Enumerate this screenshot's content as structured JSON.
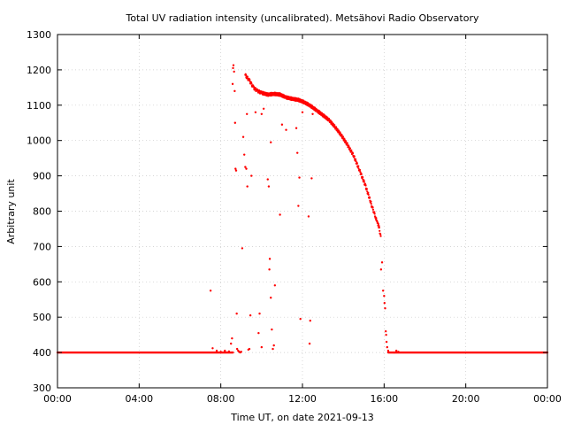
{
  "chart_data": {
    "type": "scatter",
    "title": "Total UV radiation intensity (uncalibrated). Metsähovi Radio Observatory",
    "xlabel": "Time UT, on date 2021-09-13",
    "ylabel": "Arbitrary unit",
    "x_unit": "hours UT",
    "xlim": [
      0,
      24
    ],
    "ylim": [
      300,
      1300
    ],
    "x_ticks": [
      {
        "value": 0,
        "label": "00:00"
      },
      {
        "value": 4,
        "label": "04:00"
      },
      {
        "value": 8,
        "label": "08:00"
      },
      {
        "value": 12,
        "label": "12:00"
      },
      {
        "value": 16,
        "label": "16:00"
      },
      {
        "value": 20,
        "label": "20:00"
      },
      {
        "value": 24,
        "label": "00:00"
      }
    ],
    "y_ticks": [
      300,
      400,
      500,
      600,
      700,
      800,
      900,
      1000,
      1100,
      1200,
      1300
    ],
    "grid": true,
    "series": [
      {
        "color": "#ff0000",
        "baseline": {
          "value": 400,
          "ranges": [
            [
              0,
              8.6
            ],
            [
              16.2,
              24
            ]
          ]
        },
        "points": [
          [
            7.5,
            575
          ],
          [
            7.6,
            412
          ],
          [
            7.8,
            405
          ],
          [
            8.0,
            402
          ],
          [
            8.2,
            405
          ],
          [
            8.4,
            403
          ],
          [
            8.5,
            425
          ],
          [
            8.55,
            440
          ],
          [
            8.58,
            1160
          ],
          [
            8.6,
            1205
          ],
          [
            8.62,
            1213
          ],
          [
            8.65,
            1195
          ],
          [
            8.68,
            1140
          ],
          [
            8.7,
            1050
          ],
          [
            8.72,
            920
          ],
          [
            8.75,
            915
          ],
          [
            8.78,
            510
          ],
          [
            8.8,
            410
          ],
          [
            8.85,
            405
          ],
          [
            8.9,
            402
          ],
          [
            8.95,
            400
          ],
          [
            9.0,
            402
          ],
          [
            9.05,
            695
          ],
          [
            9.1,
            1010
          ],
          [
            9.15,
            960
          ],
          [
            9.2,
            925
          ],
          [
            9.25,
            920
          ],
          [
            9.3,
            870
          ],
          [
            9.28,
            1075
          ],
          [
            9.35,
            408
          ],
          [
            9.4,
            410
          ],
          [
            9.45,
            505
          ],
          [
            9.5,
            900
          ],
          [
            9.9,
            510
          ],
          [
            9.85,
            455
          ],
          [
            10.0,
            415
          ],
          [
            10.3,
            890
          ],
          [
            10.35,
            870
          ],
          [
            10.4,
            665
          ],
          [
            10.38,
            635
          ],
          [
            10.45,
            555
          ],
          [
            10.5,
            465
          ],
          [
            10.55,
            410
          ],
          [
            10.6,
            420
          ],
          [
            10.65,
            590
          ],
          [
            10.45,
            995
          ],
          [
            10.9,
            790
          ],
          [
            11.2,
            1030
          ],
          [
            11.7,
            1035
          ],
          [
            11.75,
            965
          ],
          [
            11.8,
            815
          ],
          [
            11.85,
            895
          ],
          [
            11.9,
            495
          ],
          [
            12.0,
            1080
          ],
          [
            12.3,
            785
          ],
          [
            12.35,
            425
          ],
          [
            12.38,
            490
          ],
          [
            12.45,
            893
          ],
          [
            12.5,
            1075
          ],
          [
            9.7,
            1080
          ],
          [
            10.1,
            1090
          ],
          [
            11.0,
            1045
          ],
          [
            10.0,
            1075
          ],
          [
            15.85,
            635
          ],
          [
            15.9,
            655
          ],
          [
            15.95,
            575
          ],
          [
            16.0,
            560
          ],
          [
            16.02,
            540
          ],
          [
            16.05,
            525
          ],
          [
            16.08,
            460
          ],
          [
            16.1,
            450
          ],
          [
            16.12,
            430
          ],
          [
            16.15,
            415
          ],
          [
            16.2,
            405
          ],
          [
            16.5,
            400
          ],
          [
            16.6,
            405
          ],
          [
            16.7,
            402
          ]
        ],
        "curve": [
          [
            9.2,
            1185
          ],
          [
            9.4,
            1170
          ],
          [
            9.6,
            1150
          ],
          [
            9.8,
            1140
          ],
          [
            10.0,
            1135
          ],
          [
            10.3,
            1130
          ],
          [
            10.6,
            1132
          ],
          [
            10.9,
            1130
          ],
          [
            11.2,
            1122
          ],
          [
            11.5,
            1118
          ],
          [
            11.8,
            1115
          ],
          [
            12.1,
            1108
          ],
          [
            12.4,
            1098
          ],
          [
            12.7,
            1085
          ],
          [
            13.0,
            1072
          ],
          [
            13.3,
            1058
          ],
          [
            13.6,
            1038
          ],
          [
            13.9,
            1015
          ],
          [
            14.2,
            988
          ],
          [
            14.5,
            958
          ],
          [
            14.8,
            915
          ],
          [
            15.1,
            870
          ],
          [
            15.4,
            815
          ],
          [
            15.6,
            780
          ],
          [
            15.75,
            755
          ],
          [
            15.85,
            722
          ]
        ]
      }
    ]
  }
}
